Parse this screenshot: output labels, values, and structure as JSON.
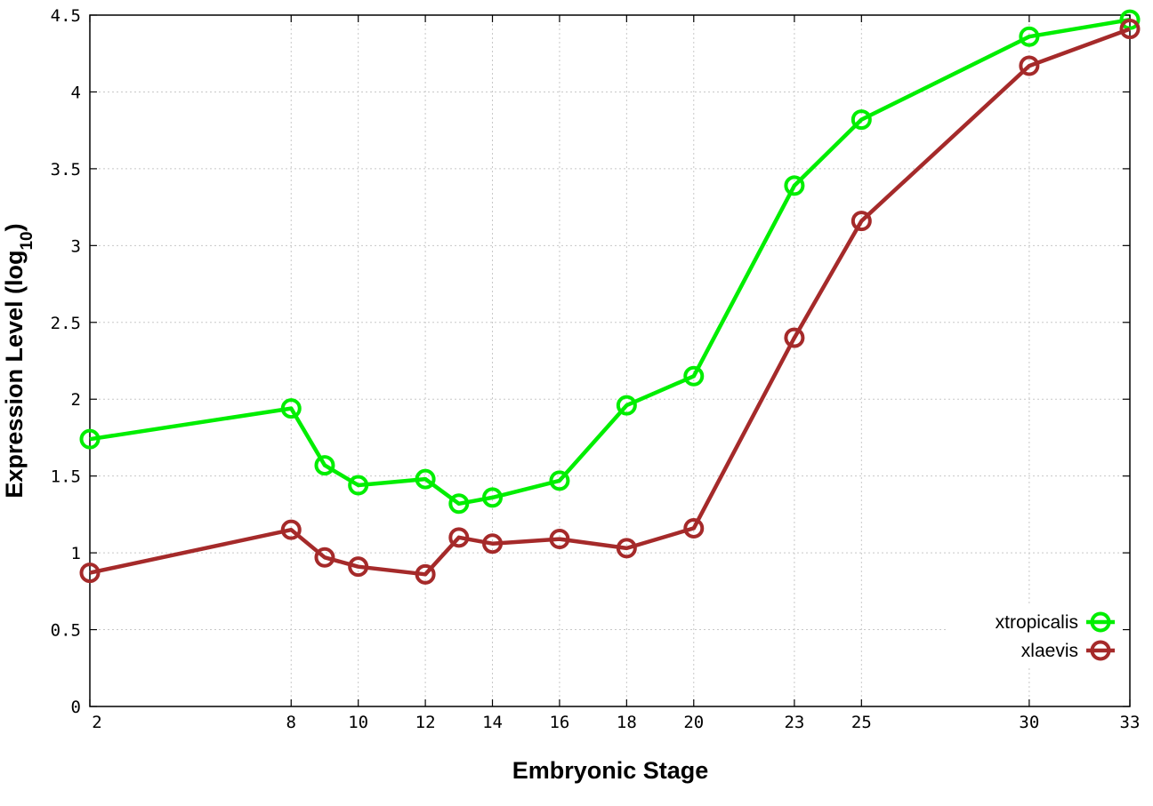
{
  "chart_data": {
    "type": "line",
    "title": "",
    "xlabel": "Embryonic Stage",
    "ylabel": "Expression Level (log",
    "ylabel_subscript": "10",
    "ylabel_suffix": ")",
    "xlim": [
      2,
      33
    ],
    "ylim": [
      0,
      4.5
    ],
    "x_ticks": [
      2,
      8,
      10,
      12,
      14,
      16,
      18,
      20,
      23,
      25,
      30,
      33
    ],
    "x_tick_labels": [
      "2",
      "8",
      "10",
      "12",
      "14",
      "16",
      "18",
      "20",
      "23",
      "25",
      "30",
      "33"
    ],
    "y_ticks": [
      0,
      0.5,
      1,
      1.5,
      2,
      2.5,
      3,
      3.5,
      4,
      4.5
    ],
    "y_tick_labels": [
      "0",
      "0.5",
      "1",
      "1.5",
      "2",
      "2.5",
      "3",
      "3.5",
      "4",
      "4.5"
    ],
    "grid": true,
    "legend_position": "bottom-right",
    "marker": "open-circle",
    "x": [
      2,
      8,
      9,
      10,
      12,
      13,
      14,
      16,
      18,
      20,
      23,
      25,
      30,
      33
    ],
    "series": [
      {
        "name": "xtropicalis",
        "color": "#00ee00",
        "values": [
          1.74,
          1.94,
          1.57,
          1.44,
          1.48,
          1.32,
          1.36,
          1.47,
          1.96,
          2.15,
          3.39,
          3.82,
          4.36,
          4.47
        ]
      },
      {
        "name": "xlaevis",
        "color": "#a52a2a",
        "values": [
          0.87,
          1.15,
          0.97,
          0.91,
          0.86,
          1.1,
          1.06,
          1.09,
          1.03,
          1.16,
          2.4,
          3.16,
          4.17,
          4.41
        ]
      }
    ]
  }
}
